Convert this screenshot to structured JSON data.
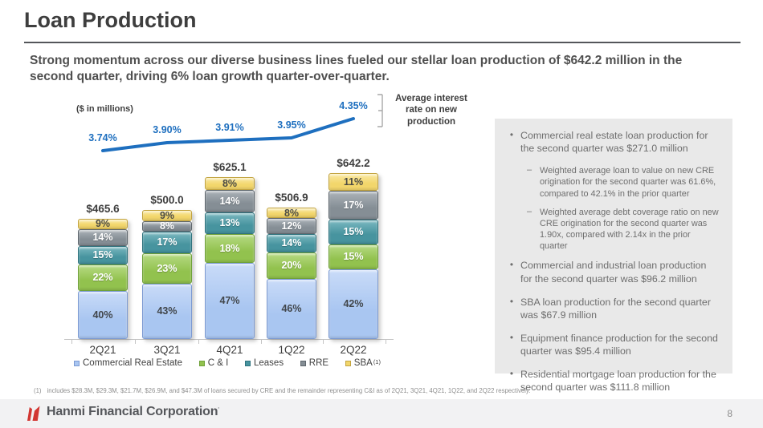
{
  "header": {
    "title": "Loan Production",
    "subtitle": "Strong momentum across our diverse business lines fueled our stellar loan production of $642.2 million in the second quarter, driving 6% loan growth quarter-over-quarter."
  },
  "chart_data": {
    "type": "bar",
    "stacked": true,
    "units_note": "($ in millions)",
    "categories": [
      "2Q21",
      "3Q21",
      "4Q21",
      "1Q22",
      "2Q22"
    ],
    "totals": [
      465.6,
      500.0,
      625.1,
      506.9,
      642.2
    ],
    "total_labels": [
      "$465.6",
      "$500.0",
      "$625.1",
      "$506.9",
      "$642.2"
    ],
    "value_suffix": "%",
    "series": [
      {
        "name": "Commercial Real Estate",
        "values": [
          40,
          43,
          47,
          46,
          42
        ],
        "color": "#a9c6f1",
        "color_light": "#c9dbf8",
        "border": "#7b9ad3",
        "label_color": "#41464b"
      },
      {
        "name": "C & I",
        "values": [
          22,
          23,
          18,
          20,
          15
        ],
        "color": "#92c24e",
        "color_light": "#b6da83",
        "border": "#6fa139",
        "label_color": "#ffffff"
      },
      {
        "name": "Leases",
        "values": [
          15,
          17,
          13,
          14,
          15
        ],
        "color": "#47949f",
        "color_light": "#7ab8c0",
        "border": "#2f737e",
        "label_color": "#ffffff"
      },
      {
        "name": "RRE",
        "values": [
          14,
          8,
          14,
          12,
          17
        ],
        "color": "#858e95",
        "color_light": "#acb3b9",
        "border": "#5e666d",
        "label_color": "#ffffff"
      },
      {
        "name": "SBA",
        "legend_sup": "(1)",
        "values": [
          9,
          9,
          8,
          8,
          11
        ],
        "color": "#f2d66b",
        "color_light": "#fae9a4",
        "border": "#c2a33e",
        "label_color": "#4a4a44"
      }
    ],
    "line_series": {
      "name": "Average interest rate on new production",
      "color": "#1e6fbf",
      "values": [
        3.74,
        3.9,
        3.91,
        3.95,
        4.35
      ],
      "labels": [
        "3.74%",
        "3.90%",
        "3.91%",
        "3.95%",
        "4.35%"
      ]
    },
    "legend_position": "bottom"
  },
  "panel": {
    "bullets": [
      {
        "text": "Commercial real estate loan production for the second quarter was $271.0 million",
        "subs": [
          "Weighted average loan to value on new CRE origination for the second quarter was 61.6%, compared to 42.1% in the prior quarter",
          "Weighted average debt coverage ratio on new CRE origination for the second quarter was 1.90x, compared with 2.14x in the prior quarter"
        ]
      },
      {
        "text": "Commercial and industrial loan production for the second quarter was $96.2 million",
        "subs": []
      },
      {
        "text": "SBA loan production for the second quarter was $67.9 million",
        "subs": []
      },
      {
        "text": "Equipment finance production for the second quarter was $95.4 million",
        "subs": []
      },
      {
        "text": "Residential mortgage loan production for the second quarter was $111.8 million",
        "subs": []
      }
    ]
  },
  "footnote": {
    "marker": "(1)",
    "text": "includes $28.3M, $29.3M, $21.7M, $26.9M, and $47.3M of loans secured by CRE and the remainder representing C&I as of 2Q21, 3Q21, 4Q21, 1Q22, and 2Q22 respectively."
  },
  "footer": {
    "brand": "Hanmi Financial Corporation",
    "trademark": "·",
    "page_number": "8"
  }
}
